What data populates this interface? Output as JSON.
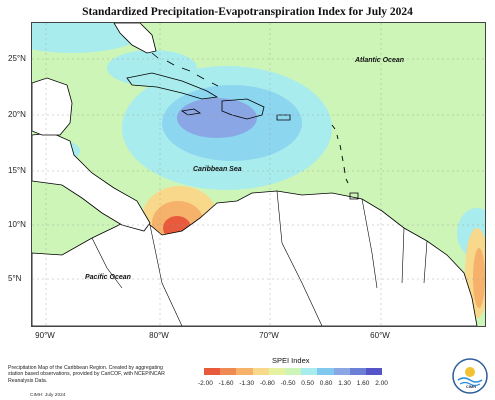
{
  "title": "Standardized Precipitation-Evapotranspiration Index for July 2024",
  "lat_labels": [
    "25°N",
    "20°N",
    "15°N",
    "10°N",
    "5°N"
  ],
  "lon_labels": [
    "90°W",
    "80°W",
    "70°W",
    "60°W"
  ],
  "region_labels": {
    "atlantic": "Atlantic Ocean",
    "caribbean": "Caribbean Sea",
    "pacific": "Pacific Ocean"
  },
  "legend": {
    "title": "SPEI Index",
    "ticks": [
      "-2.00",
      "-1.60",
      "-1.30",
      "-0.80",
      "-0.50",
      "0.50",
      "0.80",
      "1.30",
      "1.60",
      "2.00"
    ],
    "colors": [
      "#e85a3c",
      "#f08a55",
      "#f6b26b",
      "#f8d88a",
      "#e6f2a0",
      "#cdf5b7",
      "#a8ecee",
      "#7fc8ee",
      "#8aa6e4",
      "#6b7fd6",
      "#5555c8"
    ]
  },
  "footer": {
    "description": "Precipitation Map of the Caribbean Region. Created by aggregating station based observations, provided by CariCOF, with NCEP/NCAR Reanalysis Data.",
    "credit": "CIMH: July 2024"
  },
  "logo_text": "CIMH",
  "colors": {
    "neutral": "#cdf5b7",
    "wet_light": "#a8ecee",
    "wet_mid": "#8cd6f0",
    "wet_strong": "#8aa6e4",
    "dry_light": "#f8d88a",
    "dry_mid": "#f6b26b",
    "dry_strong": "#e85a3c",
    "land_outline": "#000000"
  }
}
